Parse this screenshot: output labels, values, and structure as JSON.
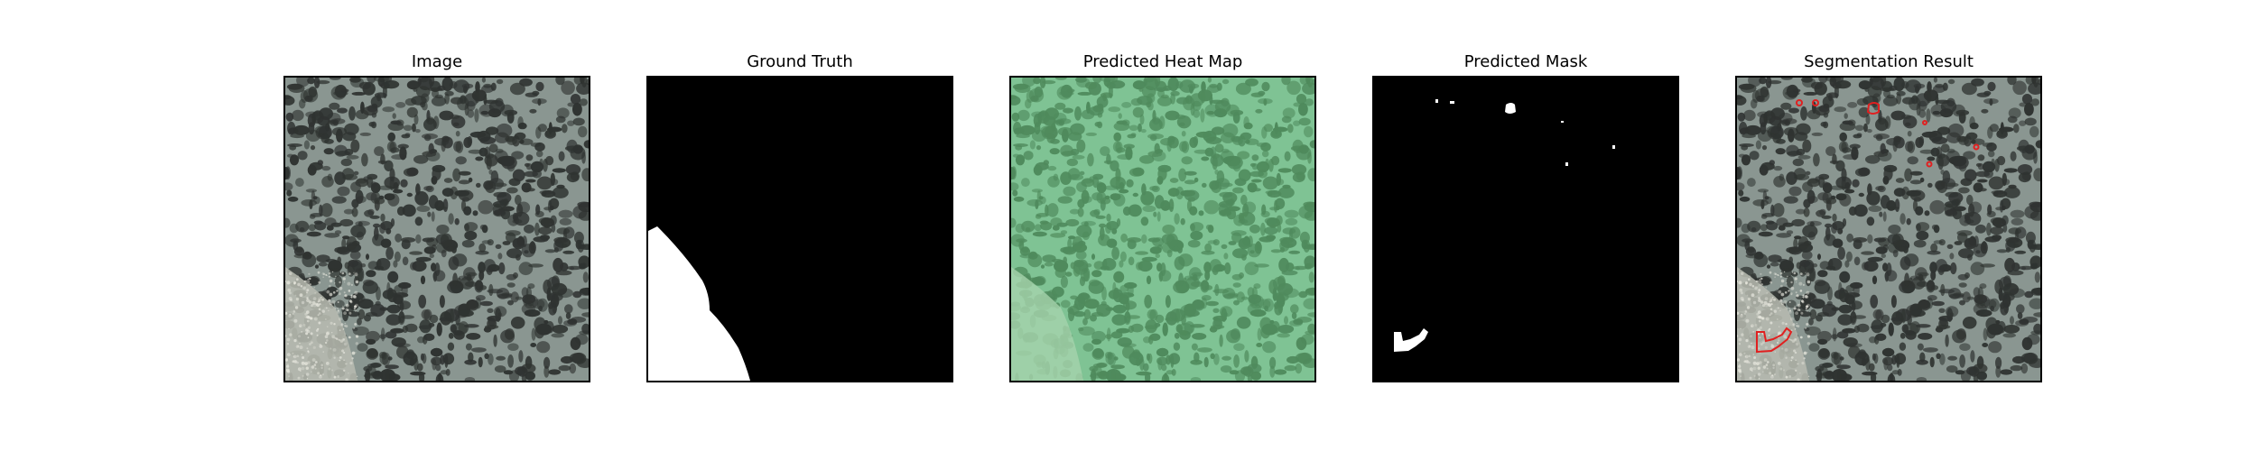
{
  "panels": [
    {
      "title": "Image",
      "kind": "image"
    },
    {
      "title": "Ground Truth",
      "kind": "ground-truth"
    },
    {
      "title": "Predicted Heat Map",
      "kind": "heatmap"
    },
    {
      "title": "Predicted Mask",
      "kind": "mask"
    },
    {
      "title": "Segmentation Result",
      "kind": "segmentation"
    }
  ],
  "colors": {
    "background": "#ffffff",
    "image_base": "#8a9691",
    "image_dark": "#2f3331",
    "heatmap_base": "#7fc394",
    "heatmap_dark": "#4f8a5c",
    "mask_fg": "#ffffff",
    "mask_bg": "#000000",
    "contour": "#e02020"
  }
}
